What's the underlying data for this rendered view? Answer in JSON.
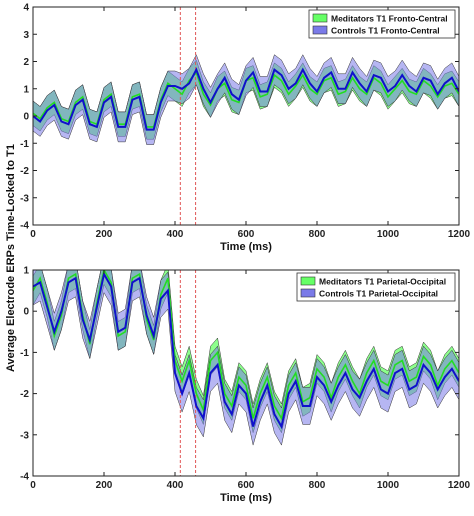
{
  "figure": {
    "ylabel": "Average Electrode ERPs Time-Locked to T1"
  },
  "chart_data": [
    {
      "type": "line",
      "xlabel": "Time (ms)",
      "xlim": [
        0,
        1200
      ],
      "ylim": [
        -4,
        4
      ],
      "xticks": [
        0,
        200,
        400,
        600,
        800,
        1000,
        1200
      ],
      "yticks": [
        -4,
        -3,
        -2,
        -1,
        0,
        1,
        2,
        3,
        4
      ],
      "grid": false,
      "legend": "top-right",
      "vlines": [
        415,
        458
      ],
      "x": [
        0,
        20,
        40,
        60,
        80,
        100,
        120,
        140,
        160,
        180,
        200,
        220,
        240,
        260,
        280,
        300,
        320,
        340,
        360,
        380,
        400,
        420,
        440,
        460,
        480,
        500,
        520,
        540,
        560,
        580,
        600,
        620,
        640,
        660,
        680,
        700,
        720,
        740,
        760,
        780,
        800,
        820,
        840,
        860,
        880,
        900,
        920,
        940,
        960,
        980,
        1000,
        1020,
        1040,
        1060,
        1080,
        1100,
        1120,
        1140,
        1160,
        1180,
        1200
      ],
      "series": [
        {
          "name": "Meditators T1 Fronto-Central",
          "color": "#22dd22",
          "fill": "#66ff66",
          "values": [
            0.1,
            -0.1,
            0.3,
            0.5,
            -0.1,
            -0.2,
            0.5,
            0.7,
            -0.2,
            -0.3,
            0.6,
            0.8,
            -0.3,
            -0.3,
            0.7,
            0.8,
            -0.4,
            -0.4,
            0.6,
            1.2,
            1.0,
            0.8,
            1.3,
            1.6,
            0.8,
            0.4,
            1.0,
            1.2,
            0.6,
            0.5,
            1.3,
            1.4,
            0.7,
            0.8,
            1.5,
            1.3,
            0.8,
            1.1,
            1.5,
            1.0,
            0.8,
            1.3,
            1.4,
            0.8,
            0.9,
            1.4,
            1.0,
            0.8,
            1.4,
            1.2,
            0.7,
            1.0,
            1.3,
            0.9,
            0.8,
            1.3,
            1.1,
            0.7,
            1.1,
            1.2,
            0.8
          ],
          "band": 0.45
        },
        {
          "name": "Controls T1 Fronto-Central",
          "color": "#1010cc",
          "fill": "#7a7ae8",
          "values": [
            0.0,
            -0.2,
            0.2,
            0.4,
            -0.2,
            -0.3,
            0.4,
            0.6,
            -0.3,
            -0.4,
            0.5,
            0.7,
            -0.4,
            -0.4,
            0.6,
            0.7,
            -0.5,
            -0.5,
            0.5,
            1.1,
            1.1,
            1.0,
            1.2,
            1.7,
            1.0,
            0.5,
            1.0,
            1.4,
            0.8,
            0.6,
            1.3,
            1.6,
            0.9,
            0.9,
            1.7,
            1.5,
            1.0,
            1.2,
            1.7,
            1.2,
            0.9,
            1.4,
            1.6,
            1.0,
            1.0,
            1.6,
            1.2,
            0.9,
            1.5,
            1.4,
            0.9,
            1.1,
            1.5,
            1.1,
            0.9,
            1.4,
            1.3,
            0.8,
            1.2,
            1.4,
            0.9
          ],
          "band": 0.55
        }
      ]
    },
    {
      "type": "line",
      "xlabel": "Time (ms)",
      "xlim": [
        0,
        1200
      ],
      "ylim": [
        -4,
        1
      ],
      "xticks": [
        0,
        200,
        400,
        600,
        800,
        1000,
        1200
      ],
      "yticks": [
        -4,
        -3,
        -2,
        -1,
        0,
        1
      ],
      "grid": false,
      "legend": "top-right",
      "vlines": [
        415,
        458
      ],
      "x": [
        0,
        20,
        40,
        60,
        80,
        100,
        120,
        140,
        160,
        180,
        200,
        220,
        240,
        260,
        280,
        300,
        320,
        340,
        360,
        380,
        400,
        420,
        440,
        460,
        480,
        500,
        520,
        540,
        560,
        580,
        600,
        620,
        640,
        660,
        680,
        700,
        720,
        740,
        760,
        780,
        800,
        820,
        840,
        860,
        880,
        900,
        920,
        940,
        960,
        980,
        1000,
        1020,
        1040,
        1060,
        1080,
        1100,
        1120,
        1140,
        1160,
        1180,
        1200
      ],
      "series": [
        {
          "name": "Meditators T1 Parietal-Occipital",
          "color": "#22dd22",
          "fill": "#66ff66",
          "values": [
            0.5,
            0.8,
            0.2,
            -0.6,
            -0.1,
            0.8,
            0.9,
            -0.1,
            -0.8,
            0.2,
            1.0,
            0.7,
            -0.6,
            -0.5,
            0.8,
            0.9,
            -0.2,
            -0.7,
            0.4,
            0.8,
            -1.2,
            -1.7,
            -1.2,
            -2.0,
            -2.4,
            -1.2,
            -1.0,
            -2.0,
            -2.3,
            -1.6,
            -1.8,
            -2.6,
            -2.0,
            -1.6,
            -2.3,
            -2.6,
            -1.8,
            -1.5,
            -2.2,
            -2.1,
            -1.4,
            -1.6,
            -2.1,
            -1.6,
            -1.3,
            -1.7,
            -2.0,
            -1.5,
            -1.2,
            -1.7,
            -1.8,
            -1.3,
            -1.2,
            -1.7,
            -1.6,
            -1.1,
            -1.3,
            -1.8,
            -1.4,
            -1.2,
            -1.5
          ],
          "band": 0.35
        },
        {
          "name": "Controls T1 Parietal-Occipital",
          "color": "#1010cc",
          "fill": "#7a7ae8",
          "values": [
            0.6,
            0.7,
            0.1,
            -0.5,
            0.0,
            0.7,
            0.8,
            -0.2,
            -0.7,
            0.1,
            0.9,
            0.6,
            -0.5,
            -0.4,
            0.7,
            0.8,
            -0.1,
            -0.6,
            0.3,
            0.5,
            -1.5,
            -2.0,
            -1.5,
            -2.3,
            -2.6,
            -1.5,
            -1.3,
            -2.2,
            -2.5,
            -1.8,
            -2.0,
            -2.8,
            -2.2,
            -1.8,
            -2.5,
            -2.8,
            -2.0,
            -1.7,
            -2.3,
            -2.3,
            -1.6,
            -1.8,
            -2.2,
            -1.8,
            -1.5,
            -1.9,
            -2.1,
            -1.7,
            -1.4,
            -1.9,
            -2.0,
            -1.5,
            -1.4,
            -1.9,
            -1.8,
            -1.3,
            -1.5,
            -1.9,
            -1.6,
            -1.4,
            -1.7
          ],
          "band": 0.45
        }
      ]
    }
  ]
}
